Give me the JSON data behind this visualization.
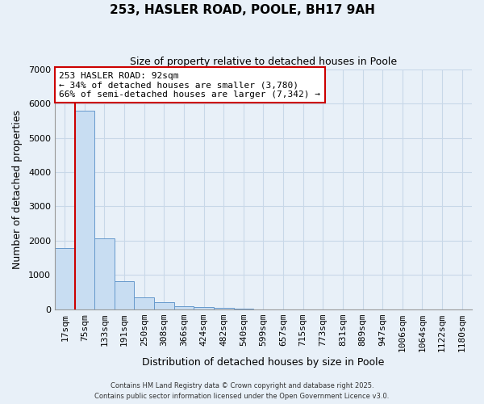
{
  "title1": "253, HASLER ROAD, POOLE, BH17 9AH",
  "title2": "Size of property relative to detached houses in Poole",
  "xlabel": "Distribution of detached houses by size in Poole",
  "ylabel": "Number of detached properties",
  "bar_labels": [
    "17sqm",
    "75sqm",
    "133sqm",
    "191sqm",
    "250sqm",
    "308sqm",
    "366sqm",
    "424sqm",
    "482sqm",
    "540sqm",
    "599sqm",
    "657sqm",
    "715sqm",
    "773sqm",
    "831sqm",
    "889sqm",
    "947sqm",
    "1006sqm",
    "1064sqm",
    "1122sqm",
    "1180sqm"
  ],
  "bar_values": [
    1780,
    5800,
    2060,
    830,
    360,
    220,
    100,
    65,
    35,
    20,
    8,
    3,
    1,
    0,
    0,
    0,
    0,
    0,
    0,
    0,
    0
  ],
  "bar_color": "#c8ddf2",
  "bar_edge_color": "#6699cc",
  "vline_color": "#cc0000",
  "vline_x": 0.5,
  "annotation_title": "253 HASLER ROAD: 92sqm",
  "annotation_line2": "← 34% of detached houses are smaller (3,780)",
  "annotation_line3": "66% of semi-detached houses are larger (7,342) →",
  "annotation_box_color": "#ffffff",
  "annotation_box_edge_color": "#cc0000",
  "ylim": [
    0,
    7000
  ],
  "yticks": [
    0,
    1000,
    2000,
    3000,
    4000,
    5000,
    6000,
    7000
  ],
  "grid_color": "#c8d8e8",
  "bg_color": "#e8f0f8",
  "footer1": "Contains HM Land Registry data © Crown copyright and database right 2025.",
  "footer2": "Contains public sector information licensed under the Open Government Licence v3.0."
}
